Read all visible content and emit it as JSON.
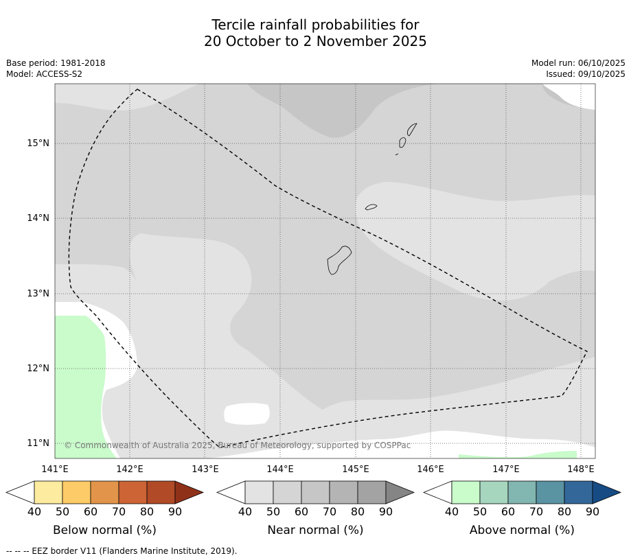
{
  "title_line1": "Tercile rainfall probabilities for",
  "title_line2": "20 October to 2 November 2025",
  "base_period": "Base period: 1981-2018",
  "model": "Model: ACCESS-S2",
  "model_run": "Model run: 06/10/2025",
  "issued": "Issued: 09/10/2025",
  "copyright": "© Commonwealth of Australia 2025, Bureau of Meteorology, supported by COSPPac",
  "footer": "--  --  -- EEZ border V11 (Flanders Marine Institute, 2019).",
  "map": {
    "lon_labels": [
      "141°E",
      "142°E",
      "143°E",
      "144°E",
      "145°E",
      "146°E",
      "147°E",
      "148°E"
    ],
    "lat_labels": [
      "15°N",
      "14°N",
      "13°N",
      "12°N",
      "11°N"
    ],
    "colors": {
      "near_40": "#e3e3e3",
      "near_50": "#d5d5d5",
      "near_60": "#c6c6c6",
      "above_40": "#c9fbcb",
      "none": "#ffffff"
    }
  },
  "legends": [
    {
      "title": "Below normal (%)",
      "ticks": [
        "40",
        "50",
        "60",
        "70",
        "80",
        "90"
      ],
      "colors": [
        "#ffffff",
        "#fdeba0",
        "#fdcb68",
        "#e2954a",
        "#cc6435",
        "#b14a27",
        "#8f3119"
      ]
    },
    {
      "title": "Near normal (%)",
      "ticks": [
        "40",
        "50",
        "60",
        "70",
        "80",
        "90"
      ],
      "colors": [
        "#ffffff",
        "#e3e3e3",
        "#d5d5d5",
        "#c6c6c6",
        "#b4b4b4",
        "#a3a3a3",
        "#858585"
      ]
    },
    {
      "title": "Above normal (%)",
      "ticks": [
        "40",
        "50",
        "60",
        "70",
        "80",
        "90"
      ],
      "colors": [
        "#ffffff",
        "#c9fbcb",
        "#a7d6bf",
        "#82b6b0",
        "#5a93a2",
        "#336799",
        "#174b84"
      ]
    }
  ]
}
